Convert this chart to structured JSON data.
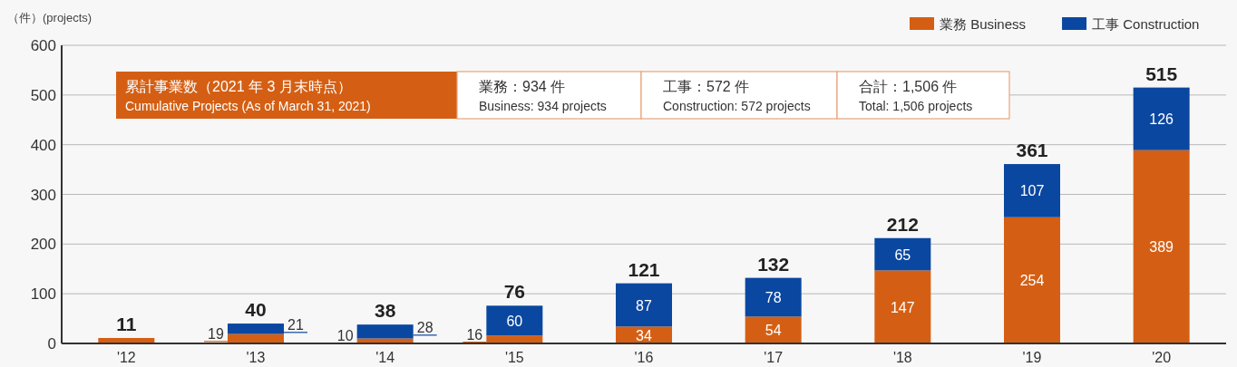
{
  "chart_data": {
    "type": "bar",
    "stacked": true,
    "ylabel": "（件）(projects)",
    "categories": [
      "'12",
      "'13",
      "'14",
      "'15",
      "'16",
      "'17",
      "'18",
      "'19",
      "'20"
    ],
    "series": [
      {
        "name": "業務 Business",
        "color": "#d45f14",
        "values": [
          11,
          19,
          10,
          16,
          34,
          54,
          147,
          254,
          389
        ],
        "value_labels": [
          null,
          "19",
          "10",
          "16",
          "34",
          "54",
          "147",
          "254",
          "389"
        ]
      },
      {
        "name": "工事 Construction",
        "color": "#0a47a0",
        "values": [
          null,
          21,
          28,
          60,
          87,
          78,
          65,
          107,
          126
        ],
        "value_labels": [
          null,
          "21",
          "28",
          "60",
          "87",
          "78",
          "65",
          "107",
          "126"
        ]
      }
    ],
    "totals": [
      "11",
      "40",
      "38",
      "76",
      "121",
      "132",
      "212",
      "361",
      "515"
    ],
    "ylim": [
      0,
      600
    ],
    "yticks": [
      0,
      100,
      200,
      300,
      400,
      500,
      600
    ],
    "grid": "y",
    "legend": "top right",
    "annotations": [
      "累計事業数（2021 年 3 月末時点）",
      "Cumulative Projects (As of March 31, 2021)",
      "業務：934 件",
      "Business: 934 projects",
      "工事：572 件",
      "Construction: 572 projects",
      "合計：1,506 件",
      "Total: 1,506 projects"
    ]
  }
}
